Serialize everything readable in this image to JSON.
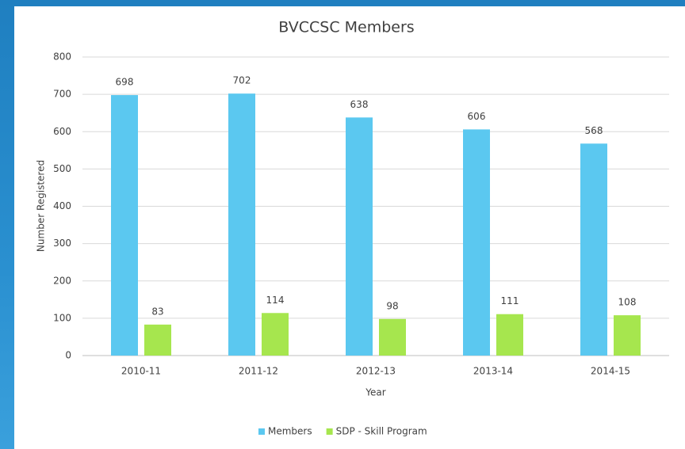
{
  "chart_data": {
    "type": "bar",
    "title": "BVCCSC Members",
    "x_label": "Year",
    "y_label": "Number Registered",
    "categories": [
      "2010-11",
      "2011-12",
      "2012-13",
      "2013-14",
      "2014-15"
    ],
    "series": [
      {
        "name": "Members",
        "color": "#5bc8f0",
        "values": [
          698,
          702,
          638,
          606,
          568
        ]
      },
      {
        "name": "SDP - Skill Program",
        "color": "#a6e64e",
        "values": [
          83,
          114,
          98,
          111,
          108
        ]
      }
    ],
    "ylim": [
      0,
      800
    ],
    "yticks": [
      0,
      100,
      200,
      300,
      400,
      500,
      600,
      700,
      800
    ],
    "grid": true,
    "legend": "bottom"
  }
}
